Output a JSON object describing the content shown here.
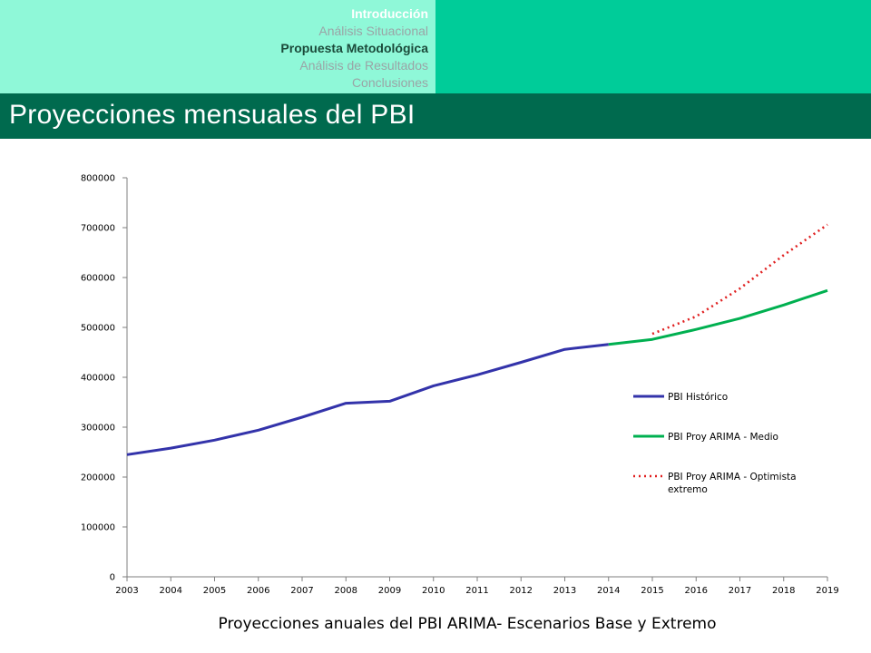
{
  "nav": {
    "items": [
      {
        "label": "Introducción",
        "state": "active"
      },
      {
        "label": "Análisis Situacional",
        "state": "inactive"
      },
      {
        "label": "Propuesta Metodológica",
        "state": "current"
      },
      {
        "label": "Análisis de Resultados",
        "state": "inactive"
      },
      {
        "label": "Conclusiones",
        "state": "inactive"
      }
    ]
  },
  "header": {
    "title": "Proyecciones mensuales del PBI"
  },
  "caption": "Proyecciones anuales del PBI ARIMA- Escenarios Base y Extremo",
  "colors": {
    "historico": "#3333aa",
    "medio": "#00b050",
    "optimista": "#e02020",
    "nav_bg": "#8ff8d8",
    "accent": "#00cc99",
    "title_bg": "#006a4e"
  },
  "chart_data": {
    "type": "line",
    "title": "",
    "xlabel": "",
    "ylabel": "",
    "ylim": [
      0,
      800000
    ],
    "yticks": [
      "0",
      "100000",
      "200000",
      "300000",
      "400000",
      "500000",
      "600000",
      "700000",
      "800000"
    ],
    "x": [
      "2003",
      "2004",
      "2005",
      "2006",
      "2007",
      "2008",
      "2009",
      "2010",
      "2011",
      "2012",
      "2013",
      "2014",
      "2015",
      "2016",
      "2017",
      "2018",
      "2019"
    ],
    "grid": false,
    "legend": "right",
    "series": [
      {
        "name": "PBI Histórico",
        "style": "solid",
        "color": "#3333aa",
        "values": [
          245000,
          258000,
          274000,
          294000,
          320000,
          348000,
          352000,
          383000,
          405000,
          430000,
          456000,
          466000,
          null,
          null,
          null,
          null,
          null
        ]
      },
      {
        "name": "PBI Proy ARIMA - Medio",
        "style": "solid",
        "color": "#00b050",
        "values": [
          null,
          null,
          null,
          null,
          null,
          null,
          null,
          null,
          null,
          null,
          null,
          466000,
          476000,
          496000,
          518000,
          545000,
          574000
        ]
      },
      {
        "name": "PBI Proy ARIMA - Optimista extremo",
        "style": "dotted",
        "color": "#e02020",
        "values": [
          null,
          null,
          null,
          null,
          null,
          null,
          null,
          null,
          null,
          null,
          null,
          null,
          487000,
          522000,
          578000,
          645000,
          706000
        ]
      }
    ]
  }
}
